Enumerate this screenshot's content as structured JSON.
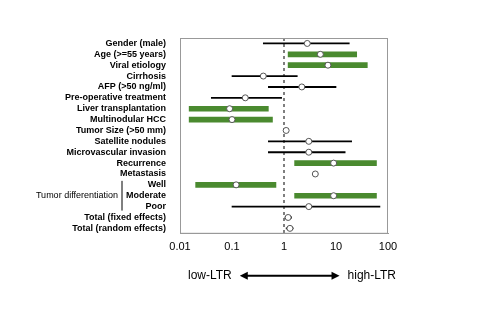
{
  "chart_data": {
    "type": "forest",
    "categories": [
      "Gender (male)",
      "Age (>=55 years)",
      "Viral etiology",
      "Cirrhosis",
      "AFP (>50 ng/ml)",
      "Pre-operative treatment",
      "Liver transplantation",
      "Multinodular HCC",
      "Tumor Size (>50 mm)",
      "Satellite nodules",
      "Microvascular invasion",
      "Recurrence",
      "Metastasis",
      "Well",
      "Moderate",
      "Poor",
      "Total (fixed effects)",
      "Total (random effects)"
    ],
    "values": [
      2.8,
      5,
      7,
      0.4,
      2.2,
      0.18,
      0.09,
      0.1,
      1.1,
      3,
      3,
      9,
      4,
      0.12,
      9,
      3,
      1.2,
      1.3
    ],
    "ci_low": [
      0.4,
      1.2,
      1.2,
      0.1,
      0.5,
      0.04,
      0.015,
      0.015,
      null,
      0.5,
      0.5,
      1.6,
      null,
      0.02,
      1.6,
      0.1,
      1.05,
      1.1
    ],
    "ci_high": [
      18,
      25,
      40,
      1.8,
      10,
      0.9,
      0.5,
      0.6,
      null,
      20,
      15,
      60,
      null,
      0.7,
      60,
      70,
      1.4,
      1.5
    ],
    "colors": [
      "#000000",
      "#4a8a2f",
      "#4a8a2f",
      "#000000",
      "#000000",
      "#000000",
      "#4a8a2f",
      "#4a8a2f",
      "#000000",
      "#000000",
      "#000000",
      "#4a8a2f",
      "#000000",
      "#4a8a2f",
      "#4a8a2f",
      "#000000",
      "#000000",
      "#000000"
    ],
    "group": {
      "label": "Tumor differentiation",
      "categories": [
        "Well",
        "Moderate",
        "Poor"
      ]
    },
    "log": "x",
    "xlim": [
      0.01,
      100
    ],
    "xticks": [
      0.01,
      0.1,
      1,
      10,
      100
    ],
    "reference_line": 1,
    "annotations": {
      "low": "low-LTR",
      "high": "high-LTR"
    },
    "grid": false
  }
}
